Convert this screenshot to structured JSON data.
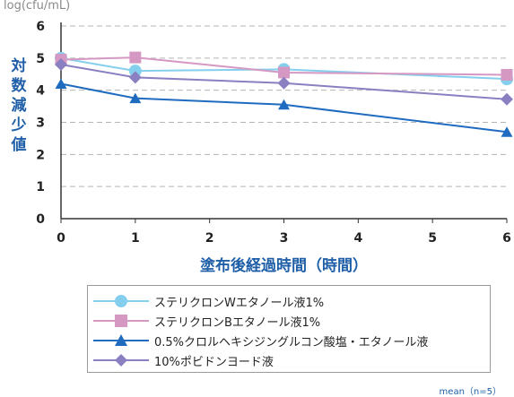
{
  "unit_label": "log(cfu/mL)",
  "note": "mean（n=5）",
  "colors": {
    "grid": "#b5b5b5",
    "axis": "#333333",
    "label_blue": "#1f5fa8"
  },
  "chart_data": {
    "type": "line",
    "title": "",
    "ylabel": "対数減少値",
    "ylabel_chars": [
      "対",
      "数",
      "減",
      "少",
      "値"
    ],
    "xlabel": "塗布後経過時間（時間）",
    "x_ticks": [
      0,
      1,
      2,
      3,
      4,
      5,
      6
    ],
    "y_ticks": [
      0,
      1,
      2,
      3,
      4,
      5,
      6
    ],
    "xlim": [
      0,
      6
    ],
    "ylim": [
      0,
      6
    ],
    "grid": "horizontal dashed",
    "legend_position": "bottom",
    "x": [
      0,
      1,
      3,
      6
    ],
    "series": [
      {
        "name": "ステリクロンWエタノール液1%",
        "values": [
          5.0,
          4.6,
          4.65,
          4.35
        ],
        "color": "#85cfee",
        "marker": "circle"
      },
      {
        "name": "ステリクロンBエタノール液1%",
        "values": [
          4.95,
          5.02,
          4.55,
          4.48
        ],
        "color": "#d598c3",
        "marker": "square"
      },
      {
        "name": "0.5%クロルヘキシジングルコン酸塩・エタノール液",
        "values": [
          4.2,
          3.75,
          3.55,
          2.7
        ],
        "color": "#1f6bc0",
        "marker": "triangle"
      },
      {
        "name": "10%ポビドンヨード液",
        "values": [
          4.8,
          4.4,
          4.22,
          3.72
        ],
        "color": "#8a7fc0",
        "marker": "diamond"
      }
    ]
  }
}
